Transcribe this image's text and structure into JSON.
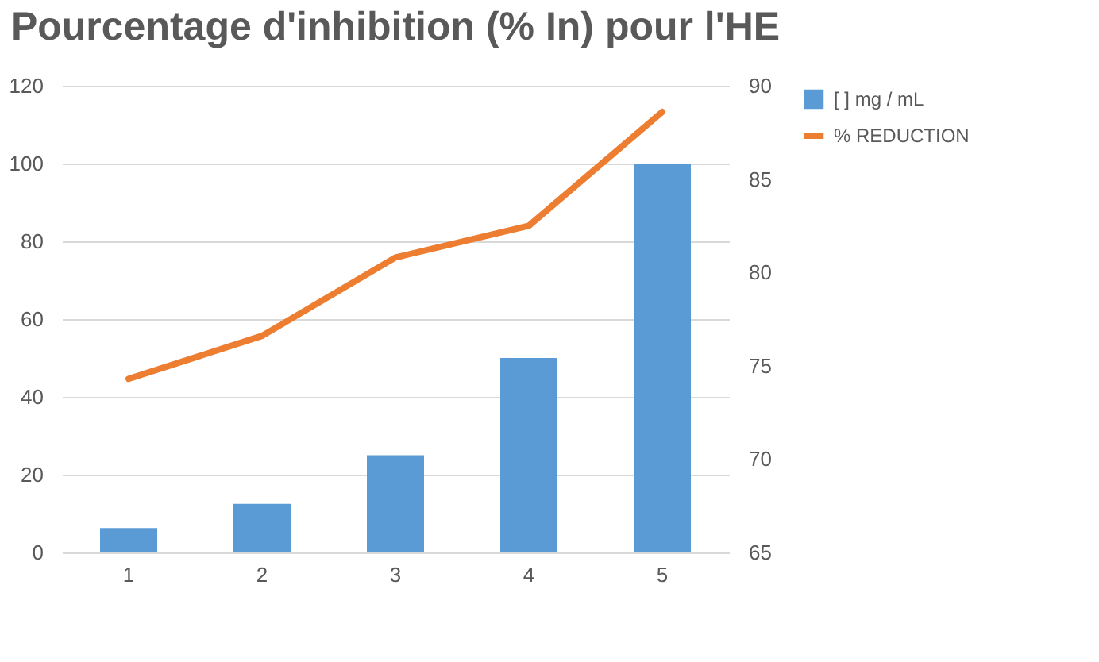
{
  "chart_data": {
    "type": "bar",
    "title": "Pourcentage d'inhibition (% In) pour l'HE",
    "categories": [
      "1",
      "2",
      "3",
      "4",
      "5"
    ],
    "series": [
      {
        "name": "[ ] mg / mL",
        "color": "#5b9bd5",
        "values": [
          6.3,
          12.5,
          25,
          50,
          100
        ]
      },
      {
        "name": "% REDUCTION",
        "color": "#ed7d31",
        "type": "line",
        "axis": "y2",
        "values": [
          74.3,
          76.6,
          80.8,
          82.5,
          88.6
        ]
      }
    ],
    "ylim": [
      0,
      120
    ],
    "yticks": [
      0,
      20,
      40,
      60,
      80,
      100,
      120
    ],
    "y2lim": [
      65,
      90
    ],
    "y2ticks": [
      65,
      70,
      75,
      80,
      85,
      90
    ],
    "grid": "y",
    "legend": "right"
  }
}
